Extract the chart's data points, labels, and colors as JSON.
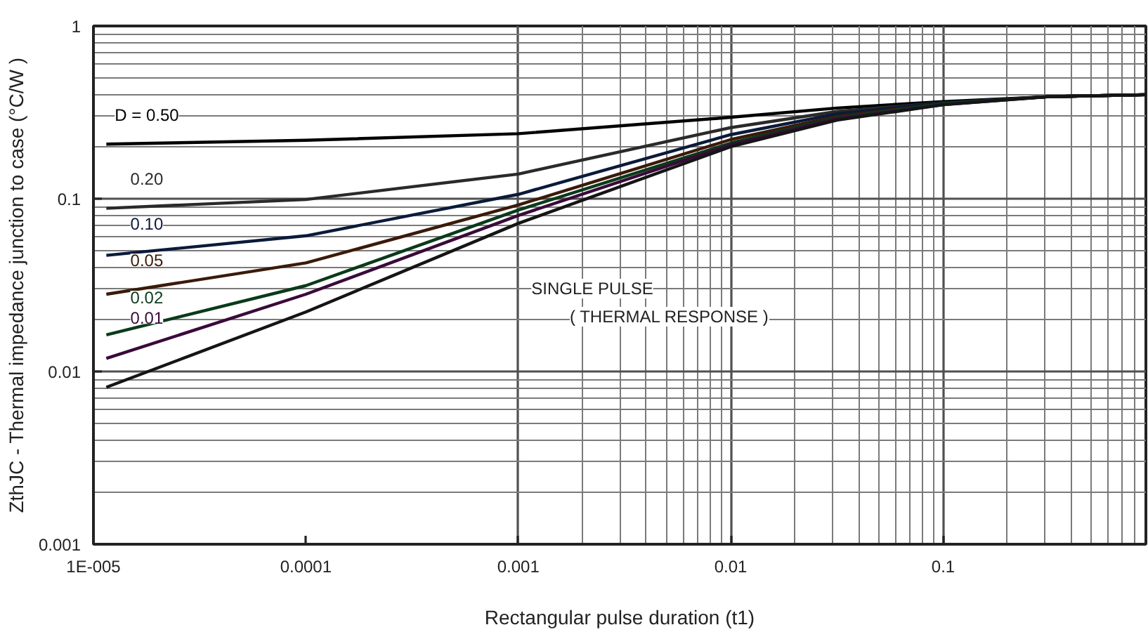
{
  "chart_data": {
    "type": "line",
    "xlabel": "Rectangular pulse duration (t1)",
    "ylabel": "ZthJC - Thermal impedance junction to case (°C/W )",
    "log": "xy",
    "grid": true,
    "marker": "none",
    "line_style": "solid",
    "xlim": [
      1e-05,
      0.9
    ],
    "ylim": [
      0.001,
      1
    ],
    "xticks": [
      {
        "value": 1e-05,
        "label": "1E-005"
      },
      0.0001,
      0.001,
      0.01,
      0.1
    ],
    "yticks": [
      0.001,
      0.01,
      0.1,
      1
    ],
    "x": [
      1.15e-05,
      0.0001,
      0.001,
      0.01,
      0.0316,
      0.1,
      0.316,
      0.9
    ],
    "series": [
      {
        "name": "D = 0.50",
        "color": "#000000",
        "values": [
          0.207,
          0.218,
          0.238,
          0.296,
          0.335,
          0.365,
          0.39,
          0.4
        ]
      },
      {
        "name": "0.20",
        "color": "#2a2a2a",
        "values": [
          0.088,
          0.099,
          0.139,
          0.258,
          0.32,
          0.36,
          0.39,
          0.4
        ]
      },
      {
        "name": "0.10",
        "color": "#0a1a3a",
        "values": [
          0.047,
          0.061,
          0.106,
          0.235,
          0.31,
          0.36,
          0.39,
          0.4
        ]
      },
      {
        "name": "0.05",
        "color": "#3a1a0a",
        "values": [
          0.028,
          0.0425,
          0.092,
          0.22,
          0.3,
          0.355,
          0.39,
          0.4
        ]
      },
      {
        "name": "0.02",
        "color": "#0a3a1a",
        "values": [
          0.0163,
          0.0314,
          0.086,
          0.21,
          0.295,
          0.355,
          0.39,
          0.4
        ]
      },
      {
        "name": "0.01",
        "color": "#3a0a3a",
        "values": [
          0.0119,
          0.028,
          0.08,
          0.205,
          0.29,
          0.35,
          0.39,
          0.4
        ]
      },
      {
        "color": "#151515",
        "values": [
          0.0081,
          0.0221,
          0.072,
          0.2,
          0.285,
          0.35,
          0.39,
          0.4
        ]
      }
    ],
    "annotations": [
      "SINGLE PULSE",
      "( THERMAL RESPONSE )"
    ]
  }
}
